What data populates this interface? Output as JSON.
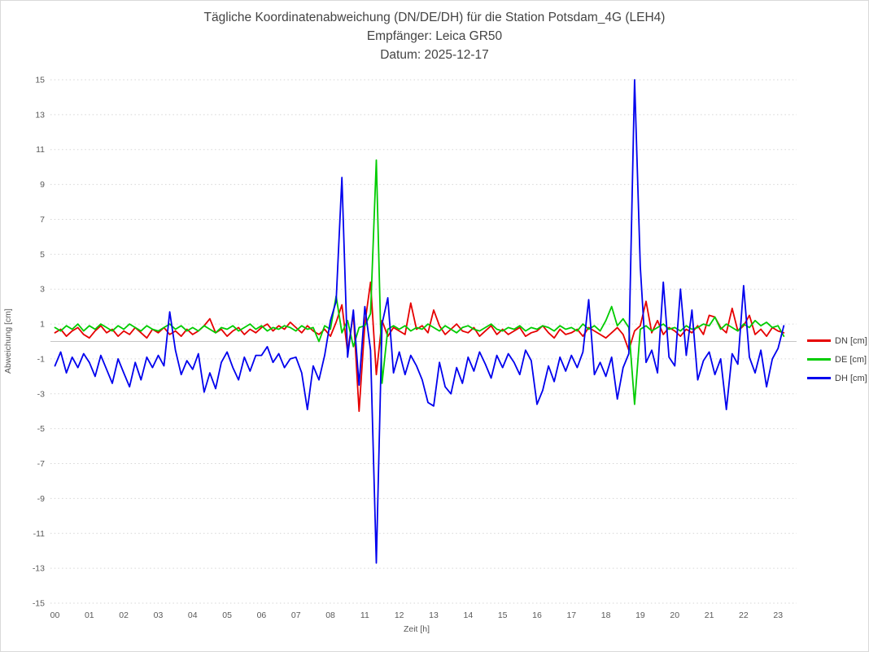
{
  "title": {
    "line1": "Tägliche Koordinatenabweichung (DN/DE/DH) für die Station Potsdam_4G (LEH4)",
    "line2": "Empfänger: Leica GR50",
    "line3": "Datum: 2025-12-17"
  },
  "chart_data": {
    "type": "line",
    "title": "Tägliche Koordinatenabweichung (DN/DE/DH) für die Station Potsdam_4G (LEH4)",
    "subtitle_receiver": "Empfänger: Leica GR50",
    "subtitle_date": "Datum: 2025-12-17",
    "xlabel": "Zeit [h]",
    "ylabel": "Abweichung [cm]",
    "x_categories": [
      "00",
      "01",
      "02",
      "03",
      "04",
      "05",
      "06",
      "07",
      "08",
      "11",
      "12",
      "13",
      "14",
      "15",
      "16",
      "17",
      "18",
      "19",
      "20",
      "21",
      "22",
      "23"
    ],
    "y_ticks": [
      15,
      13,
      11,
      9,
      7,
      5,
      3,
      1,
      -1,
      -3,
      -5,
      -7,
      -9,
      -11,
      -13,
      -15
    ],
    "ylim": [
      -15,
      15
    ],
    "grid": "horizontal-dotted",
    "zero_line": true,
    "legend_position": "right-middle",
    "legend": [
      "DN [cm]",
      "DE [cm]",
      "DH [cm]"
    ],
    "colors": {
      "DN": "#e60000",
      "DE": "#00cc00",
      "DH": "#0000ee",
      "grid": "#d6d6d6",
      "zero": "#c6c6c6"
    },
    "times": [
      "00:00",
      "00:10",
      "00:20",
      "00:30",
      "00:40",
      "00:50",
      "01:00",
      "01:10",
      "01:20",
      "01:30",
      "01:40",
      "01:50",
      "02:00",
      "02:10",
      "02:20",
      "02:30",
      "02:40",
      "02:50",
      "03:00",
      "03:10",
      "03:20",
      "03:30",
      "03:40",
      "03:50",
      "04:00",
      "04:10",
      "04:20",
      "04:30",
      "04:40",
      "04:50",
      "05:00",
      "05:10",
      "05:20",
      "05:30",
      "05:40",
      "05:50",
      "06:00",
      "06:10",
      "06:20",
      "06:30",
      "06:40",
      "06:50",
      "07:00",
      "07:10",
      "07:20",
      "07:30",
      "07:40",
      "07:50",
      "08:00",
      "08:10",
      "08:20",
      "08:30",
      "08:40",
      "08:50",
      "11:00",
      "11:10",
      "11:20",
      "11:30",
      "11:40",
      "11:50",
      "12:00",
      "12:10",
      "12:20",
      "12:30",
      "12:40",
      "12:50",
      "13:00",
      "13:10",
      "13:20",
      "13:30",
      "13:40",
      "13:50",
      "14:00",
      "14:10",
      "14:20",
      "14:30",
      "14:40",
      "14:50",
      "15:00",
      "15:10",
      "15:20",
      "15:30",
      "15:40",
      "15:50",
      "16:00",
      "16:10",
      "16:20",
      "16:30",
      "16:40",
      "16:50",
      "17:00",
      "17:10",
      "17:20",
      "17:30",
      "17:40",
      "17:50",
      "18:00",
      "18:10",
      "18:20",
      "18:30",
      "18:40",
      "18:50",
      "19:00",
      "19:10",
      "19:20",
      "19:30",
      "19:40",
      "19:50",
      "20:00",
      "20:10",
      "20:20",
      "20:30",
      "20:40",
      "20:50",
      "21:00",
      "21:10",
      "21:20",
      "21:30",
      "21:40",
      "21:50",
      "22:00",
      "22:10",
      "22:20",
      "22:30",
      "22:40",
      "22:50",
      "23:00",
      "23:10"
    ],
    "series": [
      {
        "name": "DN [cm]",
        "color": "#e60000",
        "values": [
          0.5,
          0.7,
          0.3,
          0.6,
          0.8,
          0.4,
          0.2,
          0.6,
          0.9,
          0.5,
          0.7,
          0.3,
          0.6,
          0.4,
          0.8,
          0.5,
          0.2,
          0.7,
          0.5,
          0.8,
          0.4,
          0.6,
          0.3,
          0.7,
          0.4,
          0.6,
          0.9,
          1.3,
          0.5,
          0.7,
          0.3,
          0.6,
          0.8,
          0.4,
          0.7,
          0.5,
          0.8,
          1.0,
          0.6,
          0.9,
          0.7,
          1.1,
          0.8,
          0.5,
          0.9,
          0.6,
          0.4,
          0.7,
          0.3,
          1.1,
          2.1,
          -0.6,
          1.6,
          -4.0,
          1.0,
          3.4,
          -1.9,
          1.2,
          0.3,
          0.8,
          0.6,
          0.4,
          2.2,
          0.7,
          0.9,
          0.5,
          1.8,
          0.9,
          0.4,
          0.7,
          1.0,
          0.6,
          0.5,
          0.8,
          0.3,
          0.6,
          0.9,
          0.4,
          0.7,
          0.4,
          0.6,
          0.8,
          0.3,
          0.5,
          0.6,
          0.9,
          0.5,
          0.2,
          0.7,
          0.4,
          0.5,
          0.7,
          0.3,
          0.8,
          0.6,
          0.4,
          0.2,
          0.5,
          0.8,
          0.4,
          -0.5,
          0.6,
          0.9,
          2.3,
          0.5,
          1.2,
          0.4,
          0.8,
          0.6,
          0.3,
          0.7,
          0.5,
          0.9,
          0.4,
          1.5,
          1.4,
          0.8,
          0.5,
          1.9,
          0.6,
          0.9,
          1.5,
          0.4,
          0.7,
          0.3,
          0.8,
          0.6,
          0.5
        ]
      },
      {
        "name": "DE [cm]",
        "color": "#00cc00",
        "values": [
          0.8,
          0.6,
          0.9,
          0.7,
          1.0,
          0.6,
          0.9,
          0.7,
          1.0,
          0.8,
          0.6,
          0.9,
          0.7,
          1.0,
          0.8,
          0.6,
          0.9,
          0.7,
          0.6,
          0.8,
          1.0,
          0.7,
          0.9,
          0.6,
          0.8,
          0.6,
          0.9,
          0.7,
          0.5,
          0.8,
          0.7,
          0.9,
          0.6,
          0.8,
          1.0,
          0.7,
          0.9,
          0.6,
          0.8,
          0.7,
          0.9,
          0.8,
          0.6,
          0.9,
          0.7,
          0.8,
          0.0,
          0.9,
          0.7,
          2.6,
          0.5,
          1.2,
          -0.3,
          0.8,
          0.9,
          1.6,
          10.4,
          -2.4,
          0.7,
          0.9,
          0.7,
          0.9,
          0.6,
          0.8,
          0.7,
          1.0,
          0.8,
          0.6,
          0.9,
          0.7,
          0.5,
          0.8,
          0.9,
          0.7,
          0.6,
          0.8,
          1.0,
          0.7,
          0.6,
          0.8,
          0.7,
          0.9,
          0.6,
          0.8,
          0.7,
          0.9,
          0.8,
          0.6,
          0.9,
          0.7,
          0.8,
          0.6,
          1.0,
          0.7,
          0.9,
          0.6,
          1.2,
          2.0,
          0.9,
          1.3,
          0.8,
          -3.6,
          0.7,
          0.9,
          0.6,
          0.8,
          1.0,
          0.7,
          0.8,
          0.6,
          0.9,
          0.7,
          0.8,
          1.0,
          0.9,
          1.4,
          0.7,
          1.0,
          0.8,
          0.6,
          1.0,
          0.8,
          1.2,
          0.9,
          1.1,
          0.8,
          0.9,
          0.3
        ]
      },
      {
        "name": "DH [cm]",
        "color": "#0000ee",
        "values": [
          -1.4,
          -0.6,
          -1.8,
          -0.9,
          -1.5,
          -0.7,
          -1.2,
          -2.0,
          -0.8,
          -1.6,
          -2.4,
          -1.0,
          -1.8,
          -2.6,
          -1.2,
          -2.2,
          -0.9,
          -1.5,
          -0.8,
          -1.4,
          1.7,
          -0.5,
          -1.9,
          -1.1,
          -1.6,
          -0.7,
          -2.9,
          -1.8,
          -2.7,
          -1.2,
          -0.6,
          -1.5,
          -2.2,
          -0.9,
          -1.7,
          -0.8,
          -0.8,
          -0.3,
          -1.2,
          -0.7,
          -1.5,
          -1.0,
          -0.9,
          -1.8,
          -3.9,
          -1.4,
          -2.2,
          -0.8,
          1.2,
          2.3,
          9.4,
          -0.9,
          1.8,
          -2.5,
          2.0,
          -0.5,
          -12.7,
          1.0,
          2.5,
          -1.8,
          -0.6,
          -1.9,
          -0.8,
          -1.4,
          -2.2,
          -3.5,
          -3.7,
          -1.2,
          -2.6,
          -3.0,
          -1.5,
          -2.4,
          -0.9,
          -1.7,
          -0.6,
          -1.3,
          -2.1,
          -0.8,
          -1.5,
          -0.7,
          -1.2,
          -1.9,
          -0.5,
          -1.1,
          -3.6,
          -2.8,
          -1.4,
          -2.3,
          -0.9,
          -1.7,
          -0.8,
          -1.5,
          -0.6,
          2.4,
          -1.9,
          -1.2,
          -2.0,
          -0.9,
          -3.3,
          -1.5,
          -0.7,
          15.0,
          4.3,
          -1.2,
          -0.5,
          -1.8,
          3.4,
          -0.9,
          -1.4,
          3.0,
          -0.8,
          1.8,
          -2.2,
          -1.1,
          -0.6,
          -1.9,
          -1.0,
          -3.9,
          -0.7,
          -1.3,
          3.2,
          -0.9,
          -1.8,
          -0.5,
          -2.6,
          -1.0,
          -0.4,
          0.9
        ]
      }
    ]
  }
}
